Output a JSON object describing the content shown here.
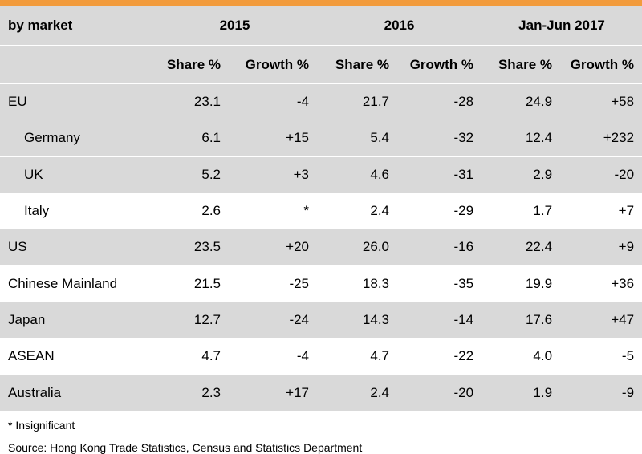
{
  "header": {
    "label": "by market",
    "years": [
      "2015",
      "2016",
      "Jan-Jun 2017"
    ],
    "sub_share": "Share %",
    "sub_growth": "Growth %"
  },
  "rows": [
    {
      "name": "EU",
      "v": [
        "23.1",
        "-4",
        "21.7",
        "-28",
        "24.9",
        "+58"
      ]
    },
    {
      "name": "Germany",
      "v": [
        "6.1",
        "+15",
        "5.4",
        "-32",
        "12.4",
        "+232"
      ]
    },
    {
      "name": "UK",
      "v": [
        "5.2",
        "+3",
        "4.6",
        "-31",
        "2.9",
        "-20"
      ]
    },
    {
      "name": "Italy",
      "v": [
        "2.6",
        "*",
        "2.4",
        "-29",
        "1.7",
        "+7"
      ]
    },
    {
      "name": "US",
      "v": [
        "23.5",
        "+20",
        "26.0",
        "-16",
        "22.4",
        "+9"
      ]
    },
    {
      "name": "Chinese Mainland",
      "v": [
        "21.5",
        "-25",
        "18.3",
        "-35",
        "19.9",
        "+36"
      ]
    },
    {
      "name": "Japan",
      "v": [
        "12.7",
        "-24",
        "14.3",
        "-14",
        "17.6",
        "+47"
      ]
    },
    {
      "name": "ASEAN",
      "v": [
        "4.7",
        "-4",
        "4.7",
        "-22",
        "4.0",
        "-5"
      ]
    },
    {
      "name": "Australia",
      "v": [
        "2.3",
        "+17",
        "2.4",
        "-20",
        "1.9",
        "-9"
      ]
    }
  ],
  "notes": {
    "insignificant": "* Insignificant",
    "source": "Source: Hong Kong Trade Statistics, Census and Statistics Department"
  },
  "colors": {
    "accent": "#f29b3c",
    "shade": "#d9d9d9"
  }
}
